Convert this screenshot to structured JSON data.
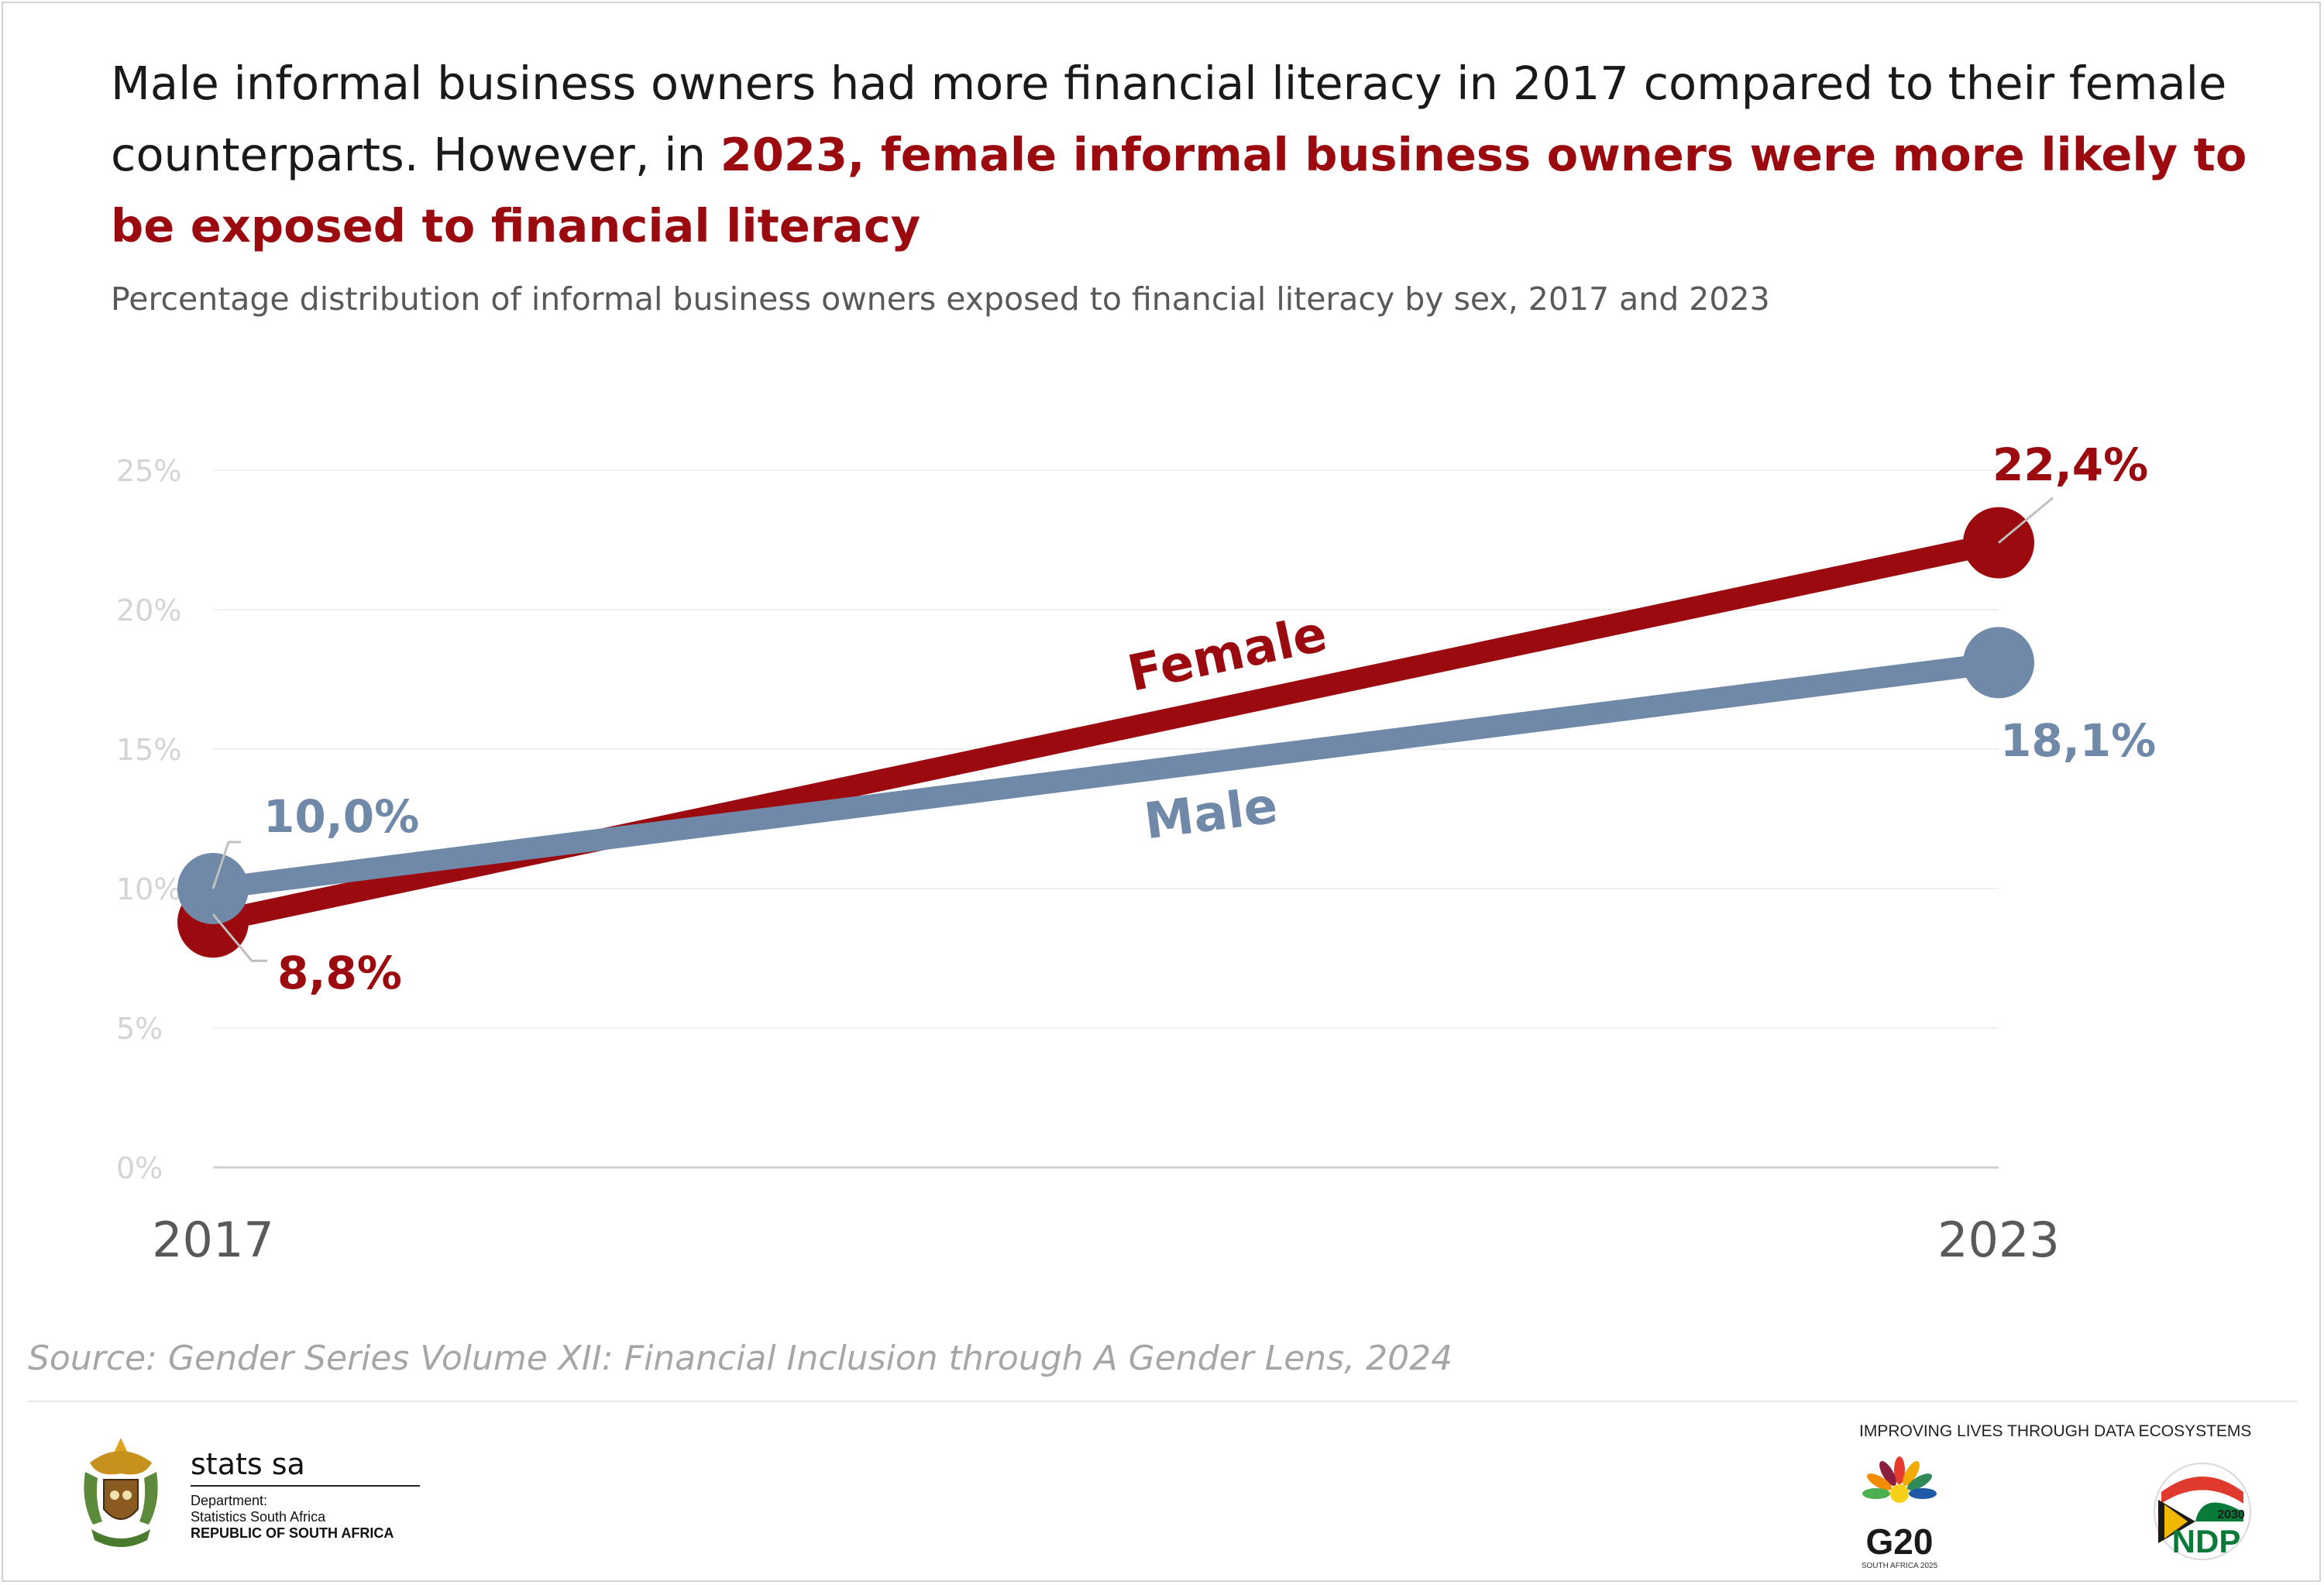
{
  "headline": {
    "part1": "Male informal business owners had more financial literacy in 2017 compared to their female counterparts. However, in ",
    "highlight": "2023, female informal business owners were more likely to be exposed to financial literacy"
  },
  "subtitle": "Percentage distribution of informal business owners exposed to financial literacy by sex, 2017 and 2023",
  "source": "Source: Gender Series Volume XII: Financial Inclusion through A Gender Lens, 2024",
  "colors": {
    "female": "#9b0a0e",
    "male": "#7189a9",
    "highlight": "#9b0a0e"
  },
  "chart_data": {
    "type": "line",
    "categories": [
      "2017",
      "2023"
    ],
    "ylim": [
      0,
      25
    ],
    "yticks": [
      "0%",
      "5%",
      "10%",
      "15%",
      "20%",
      "25%"
    ],
    "ytick_values": [
      0,
      5,
      10,
      15,
      20,
      25
    ],
    "grid": true,
    "legend": "inline labels on lines",
    "series": [
      {
        "name": "Female",
        "values": [
          8.8,
          22.4
        ],
        "labels": [
          "8,8%",
          "22,4%"
        ],
        "color": "#9b0a0e"
      },
      {
        "name": "Male",
        "values": [
          10.0,
          18.1
        ],
        "labels": [
          "10,0%",
          "18,1%"
        ],
        "color": "#7189a9"
      }
    ]
  },
  "footer": {
    "org_name": "stats sa",
    "dept_line1": "Department:",
    "dept_line2": "Statistics South Africa",
    "country": "REPUBLIC OF SOUTH AFRICA",
    "tagline": "IMPROVING LIVES THROUGH DATA ECOSYSTEMS",
    "g20_text": "G20",
    "g20_sub": "SOUTH AFRICA 2025",
    "ndp_year": "2030",
    "ndp_text": "NDP",
    "crest_icon": "coat-of-arms-icon"
  }
}
